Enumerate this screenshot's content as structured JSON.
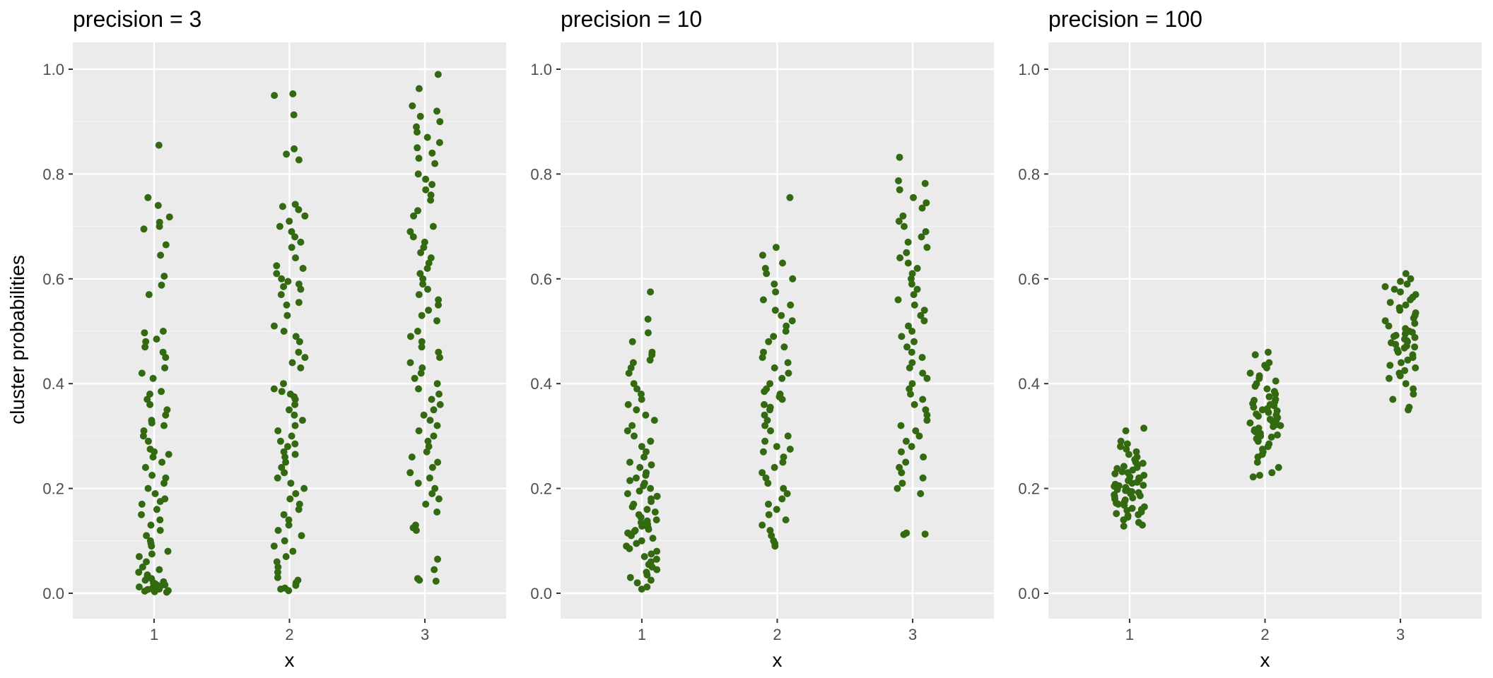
{
  "figure": {
    "ylabel": "cluster probabilities"
  },
  "chart_data": [
    {
      "type": "scatter",
      "title": "precision =  3",
      "xlabel": "x",
      "ylabel": "cluster probabilities",
      "categories": [
        "1",
        "2",
        "3"
      ],
      "yticks": [
        "0.0",
        "0.2",
        "0.4",
        "0.6",
        "0.8",
        "1.0"
      ],
      "ylim": [
        -0.05,
        1.05
      ],
      "grid": true,
      "point_color": "#336a11",
      "series": [
        {
          "x": 1,
          "values": [
            0.855,
            0.755,
            0.74,
            0.718,
            0.708,
            0.7,
            0.695,
            0.665,
            0.645,
            0.605,
            0.588,
            0.57,
            0.5,
            0.497,
            0.485,
            0.48,
            0.47,
            0.46,
            0.45,
            0.43,
            0.42,
            0.41,
            0.385,
            0.38,
            0.37,
            0.36,
            0.35,
            0.34,
            0.33,
            0.325,
            0.32,
            0.31,
            0.3,
            0.29,
            0.275,
            0.27,
            0.265,
            0.26,
            0.25,
            0.24,
            0.225,
            0.22,
            0.21,
            0.2,
            0.19,
            0.18,
            0.175,
            0.17,
            0.16,
            0.15,
            0.14,
            0.13,
            0.12,
            0.11,
            0.1,
            0.095,
            0.09,
            0.08,
            0.075,
            0.07,
            0.06,
            0.05,
            0.045,
            0.04,
            0.035,
            0.03,
            0.028,
            0.025,
            0.022,
            0.02,
            0.018,
            0.016,
            0.015,
            0.013,
            0.012,
            0.011,
            0.01,
            0.009,
            0.008,
            0.007,
            0.006,
            0.005,
            0.004,
            0.003,
            0.002
          ]
        },
        {
          "x": 2,
          "values": [
            0.953,
            0.95,
            0.913,
            0.848,
            0.838,
            0.827,
            0.742,
            0.738,
            0.732,
            0.72,
            0.71,
            0.7,
            0.69,
            0.68,
            0.67,
            0.66,
            0.64,
            0.625,
            0.62,
            0.61,
            0.6,
            0.595,
            0.59,
            0.585,
            0.58,
            0.57,
            0.555,
            0.55,
            0.53,
            0.51,
            0.5,
            0.49,
            0.48,
            0.46,
            0.45,
            0.44,
            0.43,
            0.4,
            0.39,
            0.385,
            0.38,
            0.375,
            0.37,
            0.36,
            0.35,
            0.34,
            0.33,
            0.32,
            0.31,
            0.3,
            0.29,
            0.285,
            0.28,
            0.27,
            0.265,
            0.26,
            0.25,
            0.24,
            0.23,
            0.22,
            0.21,
            0.2,
            0.19,
            0.18,
            0.17,
            0.16,
            0.15,
            0.14,
            0.13,
            0.12,
            0.11,
            0.1,
            0.09,
            0.08,
            0.07,
            0.06,
            0.05,
            0.04,
            0.03,
            0.025,
            0.02,
            0.015,
            0.01,
            0.008,
            0.005
          ]
        },
        {
          "x": 3,
          "values": [
            0.99,
            0.963,
            0.93,
            0.92,
            0.91,
            0.9,
            0.89,
            0.88,
            0.87,
            0.86,
            0.85,
            0.84,
            0.83,
            0.82,
            0.8,
            0.79,
            0.78,
            0.77,
            0.76,
            0.75,
            0.73,
            0.72,
            0.7,
            0.69,
            0.68,
            0.67,
            0.66,
            0.65,
            0.64,
            0.63,
            0.62,
            0.61,
            0.6,
            0.59,
            0.58,
            0.57,
            0.56,
            0.55,
            0.54,
            0.53,
            0.52,
            0.5,
            0.49,
            0.48,
            0.47,
            0.46,
            0.45,
            0.44,
            0.43,
            0.42,
            0.41,
            0.4,
            0.39,
            0.38,
            0.37,
            0.36,
            0.35,
            0.34,
            0.33,
            0.32,
            0.31,
            0.3,
            0.29,
            0.28,
            0.27,
            0.26,
            0.25,
            0.24,
            0.23,
            0.22,
            0.21,
            0.2,
            0.19,
            0.18,
            0.17,
            0.155,
            0.13,
            0.125,
            0.12,
            0.065,
            0.045,
            0.028,
            0.025,
            0.023
          ]
        }
      ]
    },
    {
      "type": "scatter",
      "title": "precision =  10",
      "xlabel": "x",
      "ylabel": "",
      "categories": [
        "1",
        "2",
        "3"
      ],
      "yticks": [
        "0.0",
        "0.2",
        "0.4",
        "0.6",
        "0.8",
        "1.0"
      ],
      "ylim": [
        -0.05,
        1.05
      ],
      "grid": true,
      "point_color": "#336a11",
      "series": [
        {
          "x": 1,
          "values": [
            0.575,
            0.523,
            0.497,
            0.48,
            0.46,
            0.455,
            0.445,
            0.44,
            0.43,
            0.42,
            0.4,
            0.39,
            0.38,
            0.37,
            0.36,
            0.35,
            0.34,
            0.33,
            0.32,
            0.31,
            0.3,
            0.29,
            0.28,
            0.27,
            0.26,
            0.25,
            0.245,
            0.24,
            0.23,
            0.225,
            0.22,
            0.215,
            0.21,
            0.205,
            0.2,
            0.195,
            0.19,
            0.185,
            0.18,
            0.175,
            0.17,
            0.165,
            0.16,
            0.155,
            0.15,
            0.145,
            0.14,
            0.138,
            0.135,
            0.132,
            0.13,
            0.128,
            0.125,
            0.122,
            0.12,
            0.118,
            0.115,
            0.11,
            0.105,
            0.1,
            0.095,
            0.09,
            0.085,
            0.08,
            0.075,
            0.07,
            0.065,
            0.06,
            0.055,
            0.05,
            0.045,
            0.04,
            0.035,
            0.03,
            0.025,
            0.02,
            0.012,
            0.008
          ]
        },
        {
          "x": 2,
          "values": [
            0.755,
            0.66,
            0.645,
            0.63,
            0.62,
            0.61,
            0.6,
            0.59,
            0.575,
            0.56,
            0.55,
            0.54,
            0.53,
            0.52,
            0.51,
            0.5,
            0.49,
            0.48,
            0.47,
            0.46,
            0.45,
            0.44,
            0.43,
            0.42,
            0.41,
            0.4,
            0.39,
            0.385,
            0.38,
            0.375,
            0.37,
            0.36,
            0.355,
            0.35,
            0.34,
            0.33,
            0.32,
            0.31,
            0.3,
            0.29,
            0.28,
            0.275,
            0.27,
            0.26,
            0.25,
            0.24,
            0.23,
            0.22,
            0.21,
            0.2,
            0.19,
            0.18,
            0.17,
            0.16,
            0.15,
            0.14,
            0.13,
            0.12,
            0.11,
            0.1,
            0.095,
            0.09
          ]
        },
        {
          "x": 3,
          "values": [
            0.832,
            0.787,
            0.782,
            0.77,
            0.755,
            0.745,
            0.735,
            0.72,
            0.71,
            0.7,
            0.69,
            0.68,
            0.67,
            0.66,
            0.65,
            0.64,
            0.63,
            0.62,
            0.61,
            0.6,
            0.59,
            0.58,
            0.57,
            0.56,
            0.55,
            0.54,
            0.53,
            0.52,
            0.51,
            0.5,
            0.49,
            0.48,
            0.47,
            0.46,
            0.45,
            0.44,
            0.43,
            0.42,
            0.41,
            0.4,
            0.39,
            0.38,
            0.37,
            0.36,
            0.35,
            0.34,
            0.33,
            0.32,
            0.31,
            0.3,
            0.29,
            0.28,
            0.27,
            0.26,
            0.25,
            0.24,
            0.23,
            0.22,
            0.21,
            0.2,
            0.19,
            0.115,
            0.113,
            0.112
          ]
        }
      ]
    },
    {
      "type": "scatter",
      "title": "precision =  100",
      "xlabel": "x",
      "ylabel": "",
      "categories": [
        "1",
        "2",
        "3"
      ],
      "yticks": [
        "0.0",
        "0.2",
        "0.4",
        "0.6",
        "0.8",
        "1.0"
      ],
      "ylim": [
        -0.05,
        1.05
      ],
      "grid": true,
      "point_color": "#336a11",
      "series": [
        {
          "x": 1,
          "values": [
            0.315,
            0.31,
            0.29,
            0.285,
            0.28,
            0.275,
            0.27,
            0.265,
            0.26,
            0.255,
            0.25,
            0.248,
            0.245,
            0.242,
            0.24,
            0.238,
            0.235,
            0.232,
            0.23,
            0.228,
            0.225,
            0.222,
            0.22,
            0.218,
            0.215,
            0.212,
            0.21,
            0.208,
            0.206,
            0.205,
            0.204,
            0.202,
            0.2,
            0.198,
            0.196,
            0.195,
            0.194,
            0.192,
            0.19,
            0.188,
            0.186,
            0.185,
            0.182,
            0.18,
            0.178,
            0.175,
            0.172,
            0.17,
            0.168,
            0.165,
            0.162,
            0.16,
            0.158,
            0.155,
            0.152,
            0.15,
            0.148,
            0.145,
            0.14,
            0.135,
            0.13,
            0.128
          ]
        },
        {
          "x": 2,
          "values": [
            0.46,
            0.455,
            0.44,
            0.435,
            0.43,
            0.42,
            0.415,
            0.41,
            0.405,
            0.4,
            0.395,
            0.39,
            0.385,
            0.38,
            0.375,
            0.37,
            0.368,
            0.365,
            0.362,
            0.36,
            0.358,
            0.355,
            0.352,
            0.35,
            0.348,
            0.345,
            0.342,
            0.34,
            0.338,
            0.335,
            0.332,
            0.33,
            0.328,
            0.325,
            0.322,
            0.32,
            0.318,
            0.315,
            0.312,
            0.31,
            0.308,
            0.305,
            0.302,
            0.3,
            0.298,
            0.295,
            0.29,
            0.285,
            0.28,
            0.275,
            0.27,
            0.265,
            0.26,
            0.25,
            0.24,
            0.23,
            0.225,
            0.222
          ]
        },
        {
          "x": 3,
          "values": [
            0.61,
            0.6,
            0.595,
            0.59,
            0.585,
            0.58,
            0.575,
            0.57,
            0.565,
            0.56,
            0.555,
            0.55,
            0.545,
            0.54,
            0.535,
            0.53,
            0.525,
            0.52,
            0.515,
            0.51,
            0.505,
            0.5,
            0.498,
            0.495,
            0.492,
            0.49,
            0.488,
            0.485,
            0.482,
            0.48,
            0.478,
            0.475,
            0.472,
            0.47,
            0.468,
            0.465,
            0.46,
            0.455,
            0.45,
            0.445,
            0.44,
            0.435,
            0.43,
            0.425,
            0.42,
            0.415,
            0.41,
            0.4,
            0.39,
            0.38,
            0.37,
            0.355,
            0.35
          ]
        }
      ]
    }
  ]
}
